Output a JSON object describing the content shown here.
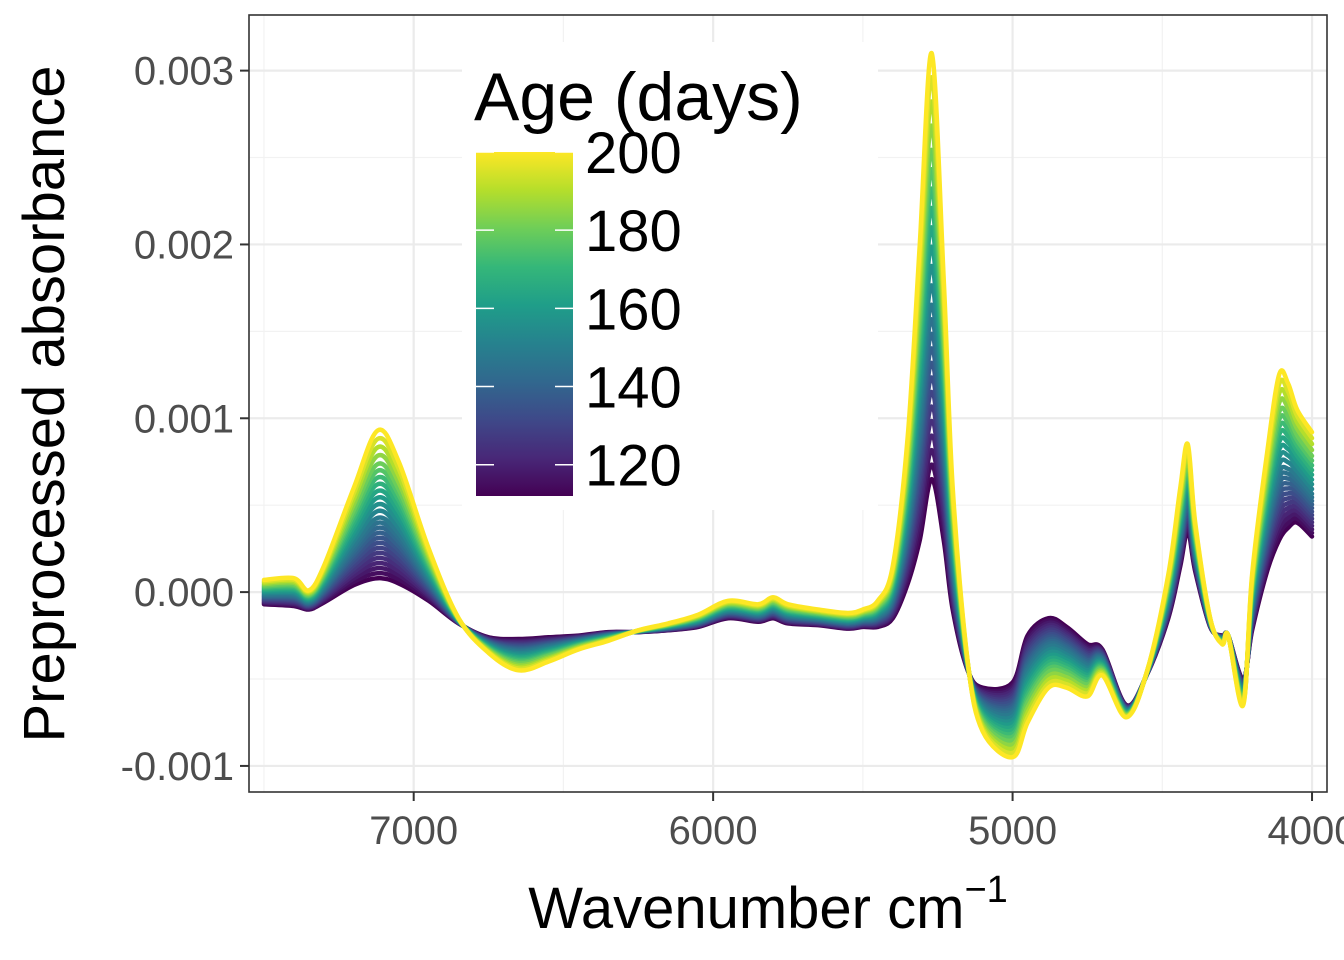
{
  "chart_data": {
    "type": "line",
    "title": "",
    "xlabel": "Wavenumber cm",
    "xlabel_superscript": "−1",
    "ylabel": "Preprocessed absorbance",
    "x_ticks": [
      "7000",
      "6000",
      "5000",
      "4000"
    ],
    "y_ticks": [
      "0.003",
      "0.002",
      "0.001",
      "0.000",
      "-0.001"
    ],
    "xlim": [
      7550,
      3950
    ],
    "ylim": [
      -0.00115,
      0.00332
    ],
    "x_reversed": true,
    "grid": true,
    "color_legend": {
      "title": "Age (days)",
      "range": [
        112,
        200
      ],
      "labels": [
        "200",
        "180",
        "160",
        "140",
        "120"
      ],
      "palette": [
        "#440154",
        "#482878",
        "#3e4989",
        "#31688e",
        "#26828e",
        "#1f9e89",
        "#35b779",
        "#6ece58",
        "#b5de2b",
        "#fde725"
      ],
      "placement": "inside top-left"
    },
    "series_ages": [
      112,
      115,
      118,
      121,
      124,
      127,
      130,
      133,
      136,
      139,
      142,
      145,
      148,
      152,
      156,
      160,
      164,
      168,
      172,
      176,
      180,
      185,
      190,
      195,
      200
    ],
    "spectrum_low_age": {
      "x": [
        7500,
        7400,
        7350,
        7300,
        7200,
        7120,
        7050,
        6950,
        6850,
        6750,
        6650,
        6550,
        6450,
        6350,
        6250,
        6150,
        6050,
        5950,
        5850,
        5800,
        5750,
        5650,
        5550,
        5500,
        5450,
        5400,
        5350,
        5310,
        5270,
        5230,
        5200,
        5150,
        5100,
        5000,
        4950,
        4880,
        4820,
        4750,
        4700,
        4620,
        4550,
        4480,
        4440,
        4415,
        4390,
        4340,
        4300,
        4280,
        4230,
        4200,
        4150,
        4110,
        4080,
        4050,
        4000
      ],
      "y": [
        -7e-05,
        -8e-05,
        -0.0001,
        -6e-05,
        4e-05,
        8e-05,
        5e-05,
        -5e-05,
        -0.00018,
        -0.00026,
        -0.00027,
        -0.00026,
        -0.00025,
        -0.00023,
        -0.00023,
        -0.00022,
        -0.0002,
        -0.00015,
        -0.00017,
        -0.00015,
        -0.00018,
        -0.00019,
        -0.00021,
        -0.0002,
        -0.0002,
        -0.00015,
        5e-05,
        0.0003,
        0.00065,
        0.0003,
        -0.0001,
        -0.00045,
        -0.00055,
        -0.00052,
        -0.00025,
        -0.00015,
        -0.0002,
        -0.0003,
        -0.00033,
        -0.00065,
        -0.00047,
        -0.00015,
        0.00015,
        0.00035,
        0.00012,
        -0.0002,
        -0.00025,
        -0.00025,
        -0.0005,
        -0.00022,
        0.00012,
        0.0003,
        0.00037,
        0.0004,
        0.00032
      ]
    },
    "spectrum_high_age": {
      "x": [
        7500,
        7400,
        7350,
        7300,
        7200,
        7120,
        7050,
        6950,
        6850,
        6750,
        6650,
        6550,
        6450,
        6350,
        6250,
        6150,
        6050,
        5950,
        5850,
        5800,
        5750,
        5650,
        5550,
        5500,
        5450,
        5400,
        5350,
        5310,
        5270,
        5230,
        5200,
        5150,
        5100,
        5000,
        4950,
        4880,
        4820,
        4750,
        4700,
        4620,
        4550,
        4480,
        4440,
        4415,
        4390,
        4340,
        4300,
        4280,
        4230,
        4200,
        4150,
        4110,
        4080,
        4050,
        4000
      ],
      "y": [
        7e-05,
        8e-05,
        1e-05,
        0.00015,
        0.0006,
        0.00093,
        0.00075,
        0.00025,
        -0.00015,
        -0.00035,
        -0.00045,
        -0.0004,
        -0.00033,
        -0.00028,
        -0.00022,
        -0.00018,
        -0.00013,
        -5e-05,
        -7e-05,
        -3e-05,
        -7e-05,
        -0.0001,
        -0.00012,
        -0.0001,
        -5e-05,
        0.00015,
        0.0009,
        0.002,
        0.0031,
        0.0018,
        0.0006,
        -0.0004,
        -0.0008,
        -0.00095,
        -0.00075,
        -0.00055,
        -0.00055,
        -0.0006,
        -0.00048,
        -0.00072,
        -0.00045,
        0.0001,
        0.0006,
        0.00085,
        0.0004,
        -0.00015,
        -0.0003,
        -0.00025,
        -0.00065,
        0.0001,
        0.0008,
        0.00125,
        0.0012,
        0.00105,
        0.00092
      ]
    }
  }
}
